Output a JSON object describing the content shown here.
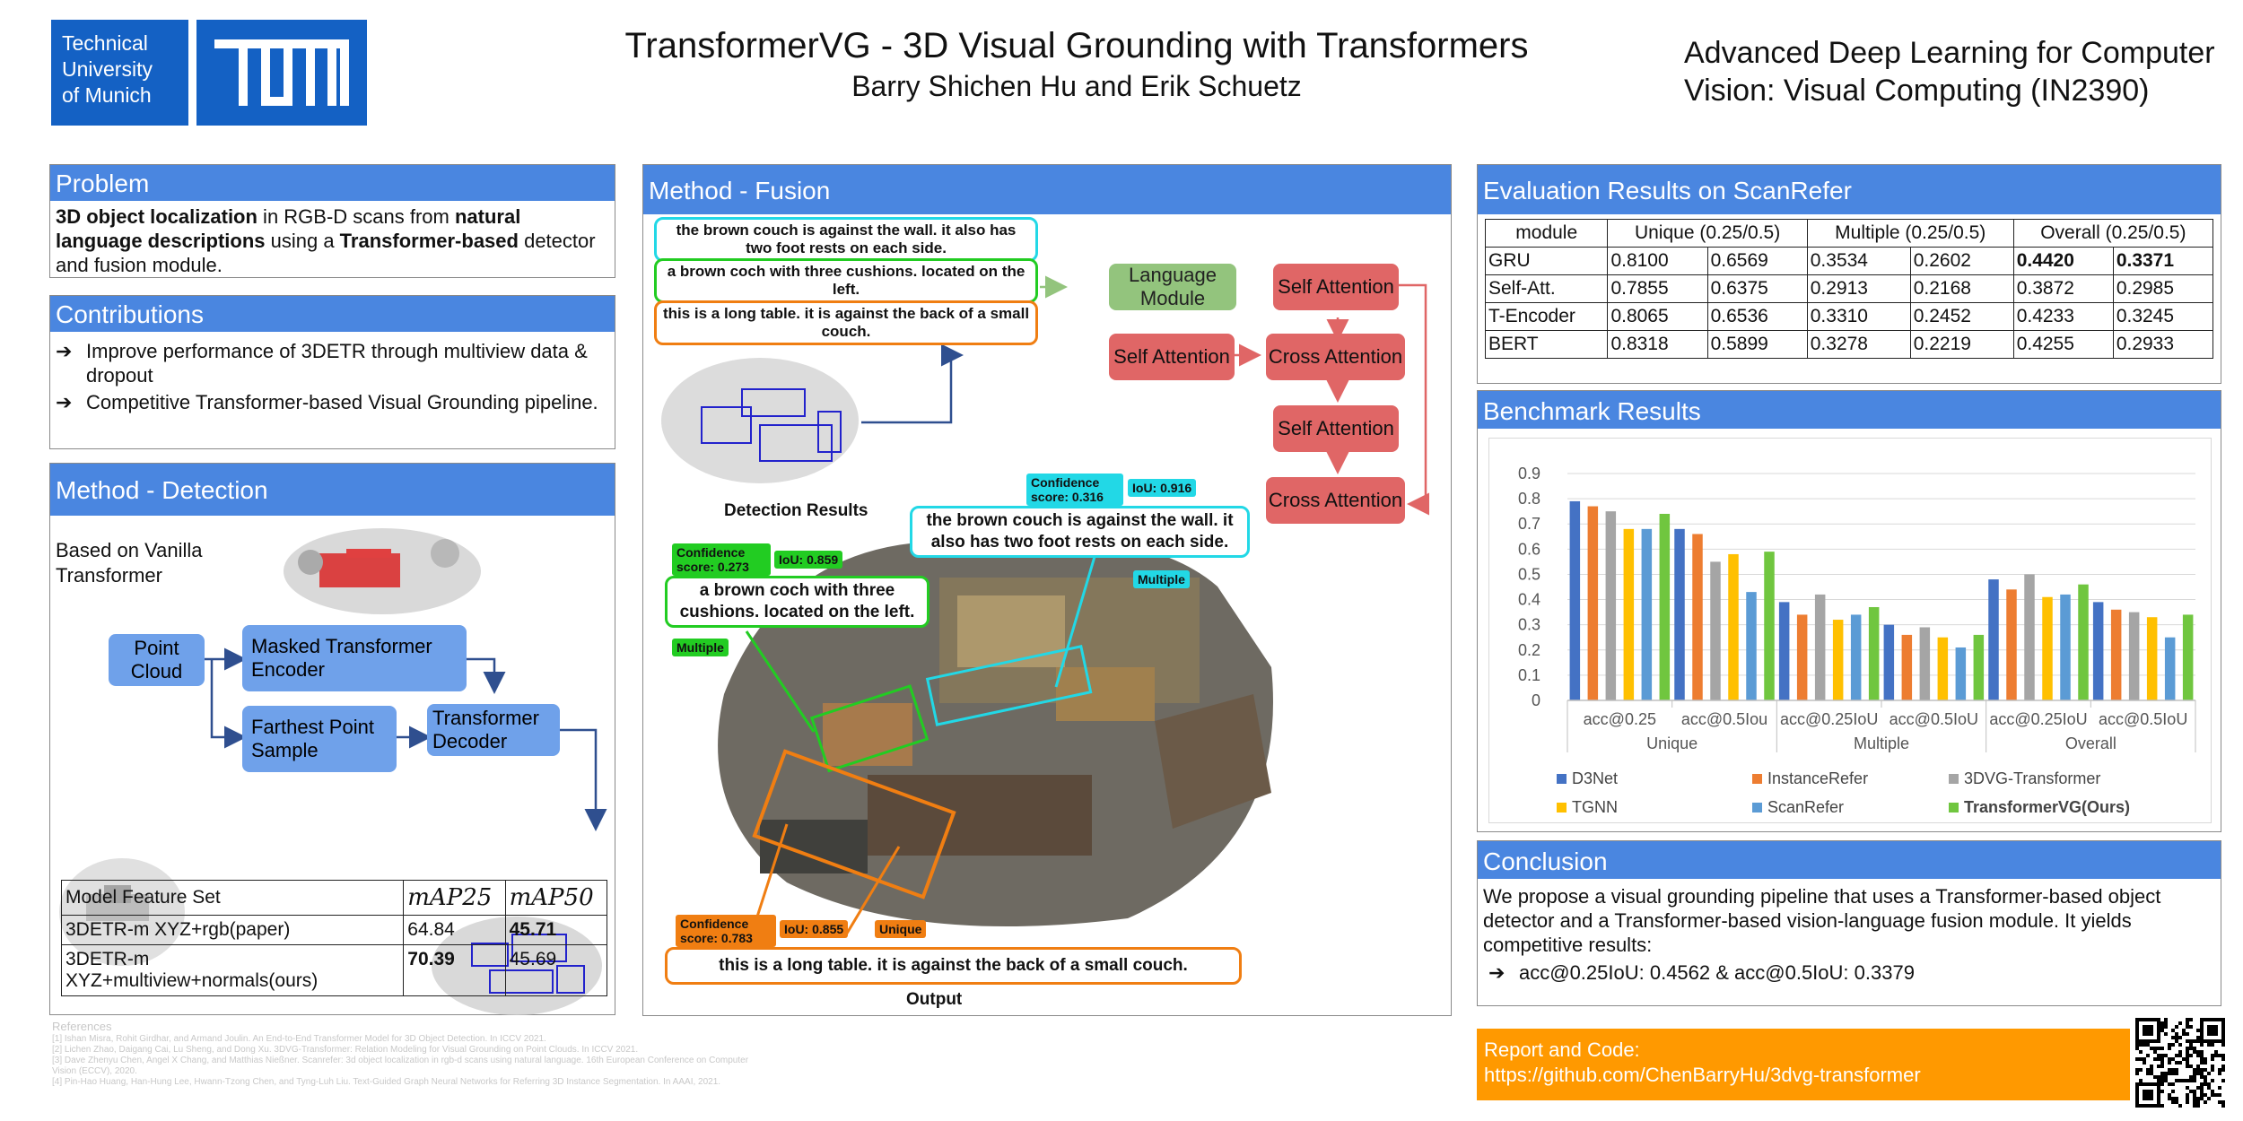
{
  "header": {
    "logo_text": [
      "Technical",
      "University",
      "of Munich"
    ],
    "logo_mark": "TUM",
    "title": "TransformerVG - 3D Visual Grounding with Transformers",
    "authors": "Barry Shichen Hu and Erik Schuetz",
    "course_line1": "Advanced Deep Learning for Computer",
    "course_line2": "Vision: Visual Computing (IN2390)"
  },
  "problem": {
    "title": "Problem",
    "segments": [
      {
        "t": "3D object localization",
        "b": true
      },
      {
        "t": " in RGB-D scans from ",
        "b": false
      },
      {
        "t": "natural language descriptions",
        "b": true
      },
      {
        "t": " using a ",
        "b": false
      },
      {
        "t": "Transformer-based",
        "b": true
      },
      {
        "t": " detector and fusion module.",
        "b": false
      }
    ]
  },
  "contributions": {
    "title": "Contributions",
    "items": [
      "Improve performance of 3DETR through multiview data & dropout",
      "Competitive Transformer-based Visual Grounding pipeline."
    ]
  },
  "detection": {
    "title": "Method - Detection",
    "caption": "Based on Vanilla Transformer",
    "nodes": {
      "point_cloud": "Point Cloud",
      "masked_encoder": "Masked Transformer Encoder",
      "fps": "Farthest Point Sample",
      "decoder": "Transformer Decoder"
    },
    "table": {
      "headers": [
        "Model Feature Set",
        "mAP25",
        "mAP50"
      ],
      "rows": [
        {
          "name": "3DETR-m XYZ+rgb(paper)",
          "v25": "64.84",
          "v50": "45.71",
          "bold25": false,
          "bold50": true
        },
        {
          "name": "3DETR-m XYZ+multiview+normals(ours)",
          "v25": "70.39",
          "v50": "45.69",
          "bold25": true,
          "bold50": false
        }
      ]
    }
  },
  "references": {
    "title": "References",
    "items": [
      "[1] Ishan Misra, Rohit Girdhar, and Armand Joulin. An End-to-End Transformer Model for 3D Object Detection. In ICCV 2021.",
      "[2] Lichen Zhao, Daigang Cai, Lu Sheng, and Dong Xu. 3DVG-Transformer: Relation Modeling for Visual Grounding on Point Clouds. In ICCV 2021.",
      "[3] Dave Zhenyu Chen, Angel X Chang, and Matthias Nießner. Scanrefer: 3d object localization in rgb-d scans using natural language. 16th European Conference on Computer Vision (ECCV), 2020.",
      "[4] Pin-Hao Huang, Han-Hung Lee, Hwann-Tzong Chen, and Tyng-Luh Liu. Text-Guided Graph Neural Networks for Referring 3D Instance Segmentation. In AAAI, 2021."
    ]
  },
  "fusion": {
    "title": "Method - Fusion",
    "captions": [
      "the brown couch is against the wall. it also has two foot rests on each side.",
      "a brown coch with three cushions. located on the left.",
      "this is a long table. it is against the back of a small couch."
    ],
    "language_module": "Language Module",
    "self_attention": "Self Attention",
    "cross_attention": "Cross Attention",
    "detection_results": "Detection Results",
    "output": "Output",
    "scene_labels": {
      "cyan_conf": "Confidence score: 0.316",
      "cyan_iou": "IoU: 0.916",
      "cyan_type": "Multiple",
      "green_conf": "Confidence score: 0.273",
      "green_iou": "IoU: 0.859",
      "green_type": "Multiple",
      "orange_conf": "Confidence score: 0.783",
      "orange_iou": "IoU: 0.855",
      "orange_type": "Unique"
    },
    "colors": {
      "cyan": "#22d8e6",
      "green": "#22cc22",
      "orange": "#f07e12"
    }
  },
  "evaluation": {
    "title": "Evaluation Results on ScanRefer",
    "headers": [
      "module",
      "Unique (0.25/0.5)",
      "Multiple (0.25/0.5)",
      "Overall (0.25/0.5)"
    ],
    "rows": [
      {
        "m": "GRU",
        "v": [
          "0.8100",
          "0.6569",
          "0.3534",
          "0.2602",
          "0.4420",
          "0.3371"
        ],
        "bold": [
          4,
          5
        ]
      },
      {
        "m": "Self-Att.",
        "v": [
          "0.7855",
          "0.6375",
          "0.2913",
          "0.2168",
          "0.3872",
          "0.2985"
        ],
        "bold": []
      },
      {
        "m": "T-Encoder",
        "v": [
          "0.8065",
          "0.6536",
          "0.3310",
          "0.2452",
          "0.4233",
          "0.3245"
        ],
        "bold": []
      },
      {
        "m": "BERT",
        "v": [
          "0.8318",
          "0.5899",
          "0.3278",
          "0.2219",
          "0.4255",
          "0.2933"
        ],
        "bold": []
      }
    ]
  },
  "benchmark": {
    "title": "Benchmark Results"
  },
  "chart_data": {
    "type": "bar",
    "categories": [
      "acc@0.25",
      "acc@0.5Iou",
      "acc@0.25IoU",
      "acc@0.5IoU",
      "acc@0.25IoU",
      "acc@0.5IoU"
    ],
    "groups": [
      {
        "label": "Unique",
        "span": 2
      },
      {
        "label": "Multiple",
        "span": 2
      },
      {
        "label": "Overall",
        "span": 2
      }
    ],
    "ylim": [
      0,
      0.9
    ],
    "yticks": [
      "0",
      "0.1",
      "0.2",
      "0.3",
      "0.4",
      "0.5",
      "0.6",
      "0.7",
      "0.8",
      "0.9"
    ],
    "grid": true,
    "legend_position": "bottom",
    "series": [
      {
        "name": "D3Net",
        "color": "#4472c4",
        "values": [
          0.79,
          0.68,
          0.39,
          0.3,
          0.48,
          0.39
        ]
      },
      {
        "name": "InstanceRefer",
        "color": "#ed7d31",
        "values": [
          0.77,
          0.66,
          0.34,
          0.26,
          0.44,
          0.36
        ]
      },
      {
        "name": "3DVG-Transformer",
        "color": "#a5a5a5",
        "values": [
          0.75,
          0.55,
          0.42,
          0.29,
          0.5,
          0.35
        ]
      },
      {
        "name": "TGNN",
        "color": "#ffc000",
        "values": [
          0.68,
          0.58,
          0.32,
          0.25,
          0.41,
          0.33
        ]
      },
      {
        "name": "ScanRefer",
        "color": "#5b9bd5",
        "values": [
          0.68,
          0.43,
          0.34,
          0.21,
          0.42,
          0.25
        ]
      },
      {
        "name": "TransformerVG(Ours)",
        "color": "#70c63f",
        "values": [
          0.74,
          0.59,
          0.37,
          0.26,
          0.46,
          0.34
        ],
        "bold": true
      }
    ]
  },
  "conclusion": {
    "title": "Conclusion",
    "text": "We propose a visual grounding pipeline that uses a Transformer-based object detector and a Transformer-based vision-language fusion module. It yields competitive results:",
    "result": "acc@0.25IoU: 0.4562 & acc@0.5IoU: 0.3379"
  },
  "report": {
    "label": "Report and Code:",
    "url": "https://github.com/ChenBarryHu/3dvg-transformer",
    "accent": "#ff9900"
  }
}
